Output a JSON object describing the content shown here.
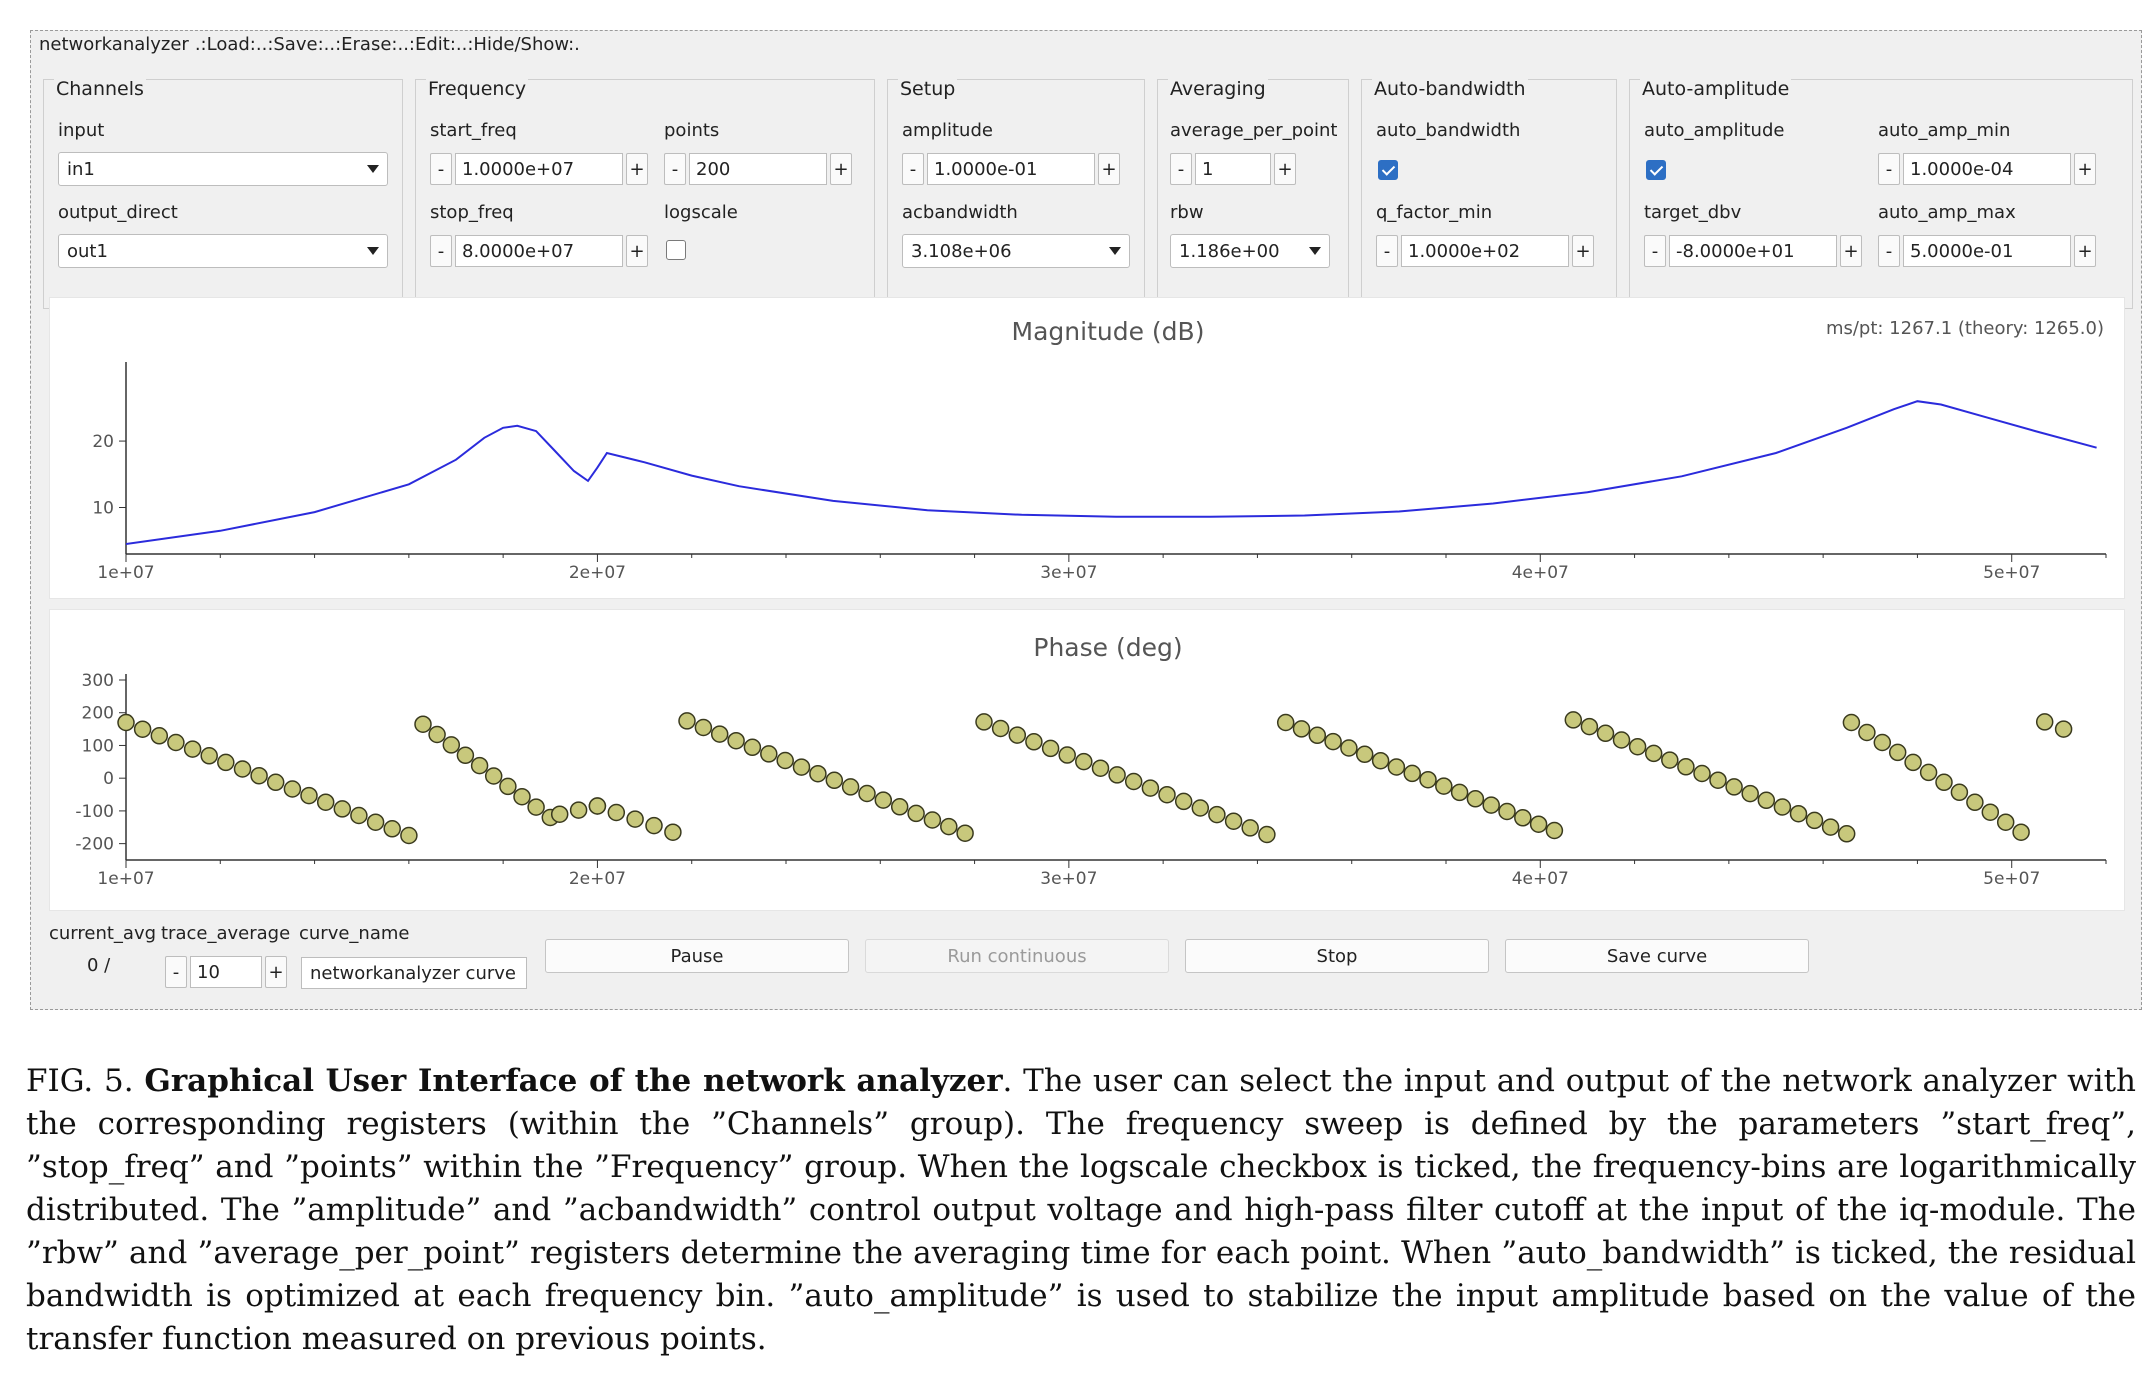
{
  "menu": {
    "items": [
      "networkanalyzer",
      ".:Load:.",
      ".:Save:.",
      ".:Erase:.",
      ".:Edit:.",
      ".:Hide/Show:."
    ]
  },
  "channels": {
    "title": "Channels",
    "input_label": "input",
    "input_value": "in1",
    "output_label": "output_direct",
    "output_value": "out1"
  },
  "frequency": {
    "title": "Frequency",
    "start_label": "start_freq",
    "start_value": "1.0000e+07",
    "points_label": "points",
    "points_value": "200",
    "stop_label": "stop_freq",
    "stop_value": "8.0000e+07",
    "logscale_label": "logscale",
    "logscale_checked": false
  },
  "setup": {
    "title": "Setup",
    "amplitude_label": "amplitude",
    "amplitude_value": "1.0000e-01",
    "acbw_label": "acbandwidth",
    "acbw_value": "3.108e+06"
  },
  "averaging": {
    "title": "Averaging",
    "avg_label": "average_per_point",
    "avg_value": "1",
    "rbw_label": "rbw",
    "rbw_value": "1.186e+00"
  },
  "autobw": {
    "title": "Auto-bandwidth",
    "auto_label": "auto_bandwidth",
    "auto_checked": true,
    "q_label": "q_factor_min",
    "q_value": "1.0000e+02"
  },
  "autoamp": {
    "title": "Auto-amplitude",
    "auto_label": "auto_amplitude",
    "auto_checked": true,
    "min_label": "auto_amp_min",
    "min_value": "1.0000e-04",
    "target_label": "target_dbv",
    "target_value": "-8.0000e+01",
    "max_label": "auto_amp_max",
    "max_value": "5.0000e-01"
  },
  "bottom": {
    "current_avg_label": "current_avg",
    "current_avg_value": "0 /",
    "trace_avg_label": "trace_average",
    "trace_avg_value": "10",
    "curve_name_label": "curve_name",
    "curve_name_value": "networkanalyzer curve",
    "pause_label": "Pause",
    "run_label": "Run continuous",
    "stop_label": "Stop",
    "save_label": "Save curve"
  },
  "spin_minus": "-",
  "spin_plus": "+",
  "colors": {
    "magnitude_line": "#2b2bdc",
    "phase_marker": "#c8c87c",
    "check_blue": "#2d6fc4"
  },
  "chart_data": [
    {
      "type": "line",
      "title": "Magnitude (dB)",
      "annotation": "ms/pt: 1267.1 (theory: 1265.0)",
      "xlim": [
        10000000,
        52000000
      ],
      "ylim": [
        3,
        31
      ],
      "x_ticks": [
        "1e+07",
        "2e+07",
        "3e+07",
        "4e+07",
        "5e+07"
      ],
      "y_ticks": [
        "10",
        "20"
      ],
      "series": [
        {
          "x": [
            10000000,
            12000000,
            14000000,
            16000000,
            17000000,
            17600000,
            18000000,
            18300000,
            18700000,
            19100000,
            19500000,
            19800000,
            20000000,
            20200000,
            21000000,
            22000000,
            23000000,
            25000000,
            27000000,
            29000000,
            31000000,
            33000000,
            35000000,
            37000000,
            39000000,
            41000000,
            43000000,
            45000000,
            46500000,
            47500000,
            48000000,
            48500000,
            49500000,
            50500000,
            51800000
          ],
          "y": [
            4.5,
            6.5,
            9.3,
            13.5,
            17.2,
            20.5,
            22.0,
            22.3,
            21.5,
            18.5,
            15.5,
            14.0,
            16.0,
            18.2,
            16.8,
            14.8,
            13.2,
            11.0,
            9.6,
            8.9,
            8.6,
            8.6,
            8.8,
            9.4,
            10.6,
            12.3,
            14.7,
            18.2,
            22.0,
            24.8,
            26.0,
            25.5,
            23.5,
            21.5,
            19.0
          ]
        }
      ]
    },
    {
      "type": "scatter",
      "title": "Phase (deg)",
      "xlim": [
        10000000,
        52000000
      ],
      "ylim": [
        -250,
        300
      ],
      "x_ticks": [
        "1e+07",
        "2e+07",
        "3e+07",
        "4e+07",
        "5e+07"
      ],
      "y_ticks": [
        "300",
        "200",
        "100",
        "0",
        "-100",
        "-200"
      ],
      "series": [
        {
          "segments": [
            {
              "x0": 10000000,
              "x1": 16000000,
              "y0": 170,
              "y1": -175,
              "n": 18
            },
            {
              "x0": 16300000,
              "x1": 19000000,
              "y0": 165,
              "y1": -120,
              "n": 10
            },
            {
              "x0": 19200000,
              "x1": 20000000,
              "y0": -110,
              "y1": -85,
              "n": 3
            },
            {
              "x0": 20000000,
              "x1": 21600000,
              "y0": -85,
              "y1": -165,
              "n": 5
            },
            {
              "x0": 21900000,
              "x1": 27800000,
              "y0": 175,
              "y1": -168,
              "n": 18
            },
            {
              "x0": 28200000,
              "x1": 34200000,
              "y0": 172,
              "y1": -172,
              "n": 18
            },
            {
              "x0": 34600000,
              "x1": 40300000,
              "y0": 170,
              "y1": -160,
              "n": 18
            },
            {
              "x0": 40700000,
              "x1": 46500000,
              "y0": 178,
              "y1": -170,
              "n": 18
            },
            {
              "x0": 46600000,
              "x1": 50200000,
              "y0": 170,
              "y1": -165,
              "n": 12
            },
            {
              "x0": 50700000,
              "x1": 51100000,
              "y0": 172,
              "y1": 150,
              "n": 2
            }
          ]
        }
      ]
    }
  ],
  "caption": {
    "prefix": "FIG. 5.",
    "bold": "Graphical User Interface of the network analyzer",
    "text": ". The user can select the input and output of the network analyzer with the corresponding registers (within the ”Channels” group). The frequency sweep is defined by the parameters ”start_freq”, ”stop_freq” and ”points” within the ”Frequency” group. When the logscale checkbox is ticked, the frequency-bins are logarithmically distributed. The ”amplitude” and ”acbandwidth” control output voltage and high-pass filter cutoff at the input of the iq-module. The ”rbw” and ”average_per_point” registers determine the averaging time for each point. When ”auto_bandwidth” is ticked, the residual bandwidth is optimized at each frequency bin. ”auto_amplitude” is used to stabilize the input amplitude based on the value of the transfer function measured on previous points."
  }
}
